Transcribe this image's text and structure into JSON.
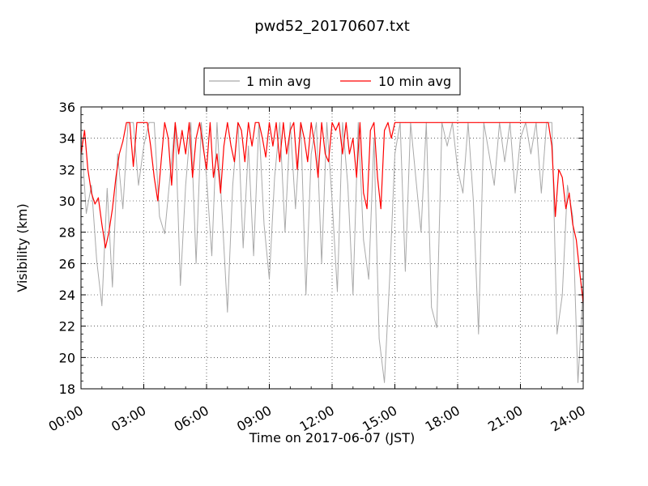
{
  "chart_data": {
    "type": "line",
    "title": "pwd52_20170607.txt",
    "xlabel": "Time on 2017-06-07 (JST)",
    "ylabel": "Visibility (km)",
    "xlim": [
      "00:00",
      "24:00"
    ],
    "ylim": [
      18,
      36
    ],
    "x_ticks": [
      "00:00",
      "03:00",
      "06:00",
      "09:00",
      "12:00",
      "15:00",
      "18:00",
      "21:00",
      "24:00"
    ],
    "y_ticks": [
      18,
      20,
      22,
      24,
      26,
      28,
      30,
      32,
      34,
      36
    ],
    "grid": true,
    "legend_position": "top-center",
    "legend": [
      "1 min avg",
      "10 min avg"
    ],
    "series": [
      {
        "name": "1 min avg",
        "color": "#a9a9a9",
        "x_hours": [
          0,
          0.25,
          0.5,
          0.75,
          1.0,
          1.25,
          1.5,
          1.75,
          2.0,
          2.25,
          2.5,
          2.75,
          3.0,
          3.25,
          3.5,
          3.75,
          4.0,
          4.25,
          4.5,
          4.75,
          5.0,
          5.25,
          5.5,
          5.75,
          6.0,
          6.25,
          6.5,
          6.75,
          7.0,
          7.25,
          7.5,
          7.75,
          8.0,
          8.25,
          8.5,
          8.75,
          9.0,
          9.25,
          9.5,
          9.75,
          10.0,
          10.25,
          10.5,
          10.75,
          11.0,
          11.25,
          11.5,
          11.75,
          12.0,
          12.25,
          12.5,
          12.75,
          13.0,
          13.25,
          13.5,
          13.75,
          14.0,
          14.25,
          14.5,
          14.75,
          15.0,
          15.25,
          15.5,
          15.75,
          16.0,
          16.25,
          16.5,
          16.75,
          17.0,
          17.25,
          17.5,
          17.75,
          18.0,
          18.25,
          18.5,
          18.75,
          19.0,
          19.25,
          19.5,
          19.75,
          20.0,
          20.25,
          20.5,
          20.75,
          21.0,
          21.25,
          21.5,
          21.75,
          22.0,
          22.25,
          22.5,
          22.75,
          23.0,
          23.25,
          23.5,
          23.75,
          24.0
        ],
        "values": [
          34.5,
          29.2,
          31.0,
          26.2,
          23.3,
          30.8,
          24.5,
          33.0,
          29.5,
          35.0,
          35.0,
          31.0,
          33.5,
          35.0,
          35.0,
          29.0,
          27.9,
          31.5,
          35.0,
          24.6,
          31.0,
          35.0,
          26.0,
          35.0,
          31.5,
          26.5,
          35.0,
          29.0,
          22.9,
          31.0,
          35.0,
          27.0,
          33.5,
          26.5,
          35.0,
          28.5,
          25.0,
          31.5,
          35.0,
          28.0,
          35.0,
          29.5,
          35.0,
          24.0,
          33.0,
          35.0,
          26.0,
          35.0,
          30.0,
          24.2,
          35.0,
          31.0,
          24.0,
          35.0,
          27.5,
          25.0,
          34.0,
          21.2,
          18.4,
          25.0,
          33.0,
          35.0,
          25.5,
          35.0,
          31.5,
          28.0,
          35.0,
          23.2,
          21.9,
          35.0,
          33.5,
          35.0,
          32.0,
          30.5,
          35.0,
          30.0,
          21.5,
          35.0,
          33.0,
          31.0,
          35.0,
          32.5,
          35.0,
          30.5,
          34.0,
          35.0,
          33.0,
          35.0,
          30.5,
          35.0,
          35.0,
          21.5,
          24.0,
          31.0,
          29.0,
          18.4,
          24.5
        ]
      },
      {
        "name": "10 min avg",
        "color": "#ff0000",
        "x_hours": [
          0,
          0.17,
          0.33,
          0.5,
          0.67,
          0.83,
          1.0,
          1.17,
          1.33,
          1.5,
          1.67,
          1.83,
          2.0,
          2.17,
          2.33,
          2.5,
          2.67,
          2.83,
          3.0,
          3.17,
          3.33,
          3.5,
          3.67,
          3.83,
          4.0,
          4.17,
          4.33,
          4.5,
          4.67,
          4.83,
          5.0,
          5.17,
          5.33,
          5.5,
          5.67,
          5.83,
          6.0,
          6.17,
          6.33,
          6.5,
          6.67,
          6.83,
          7.0,
          7.17,
          7.33,
          7.5,
          7.67,
          7.83,
          8.0,
          8.17,
          8.33,
          8.5,
          8.67,
          8.83,
          9.0,
          9.17,
          9.33,
          9.5,
          9.67,
          9.83,
          10.0,
          10.17,
          10.33,
          10.5,
          10.67,
          10.83,
          11.0,
          11.17,
          11.33,
          11.5,
          11.67,
          11.83,
          12.0,
          12.17,
          12.33,
          12.5,
          12.67,
          12.83,
          13.0,
          13.17,
          13.33,
          13.5,
          13.67,
          13.83,
          14.0,
          14.17,
          14.33,
          14.5,
          14.67,
          14.83,
          15.0,
          15.5,
          16.0,
          17.0,
          18.0,
          19.0,
          20.0,
          21.0,
          22.0,
          22.33,
          22.5,
          22.67,
          22.83,
          23.0,
          23.17,
          23.33,
          23.5,
          23.67,
          23.83,
          24.0
        ],
        "values": [
          33.0,
          34.5,
          32.0,
          30.5,
          29.8,
          30.2,
          28.5,
          27.0,
          28.0,
          29.5,
          31.5,
          33.0,
          33.8,
          35.0,
          35.0,
          32.2,
          35.0,
          35.0,
          35.0,
          35.0,
          33.5,
          31.5,
          30.0,
          32.5,
          35.0,
          34.0,
          31.0,
          35.0,
          33.0,
          34.5,
          33.0,
          35.0,
          31.5,
          34.0,
          35.0,
          33.5,
          32.0,
          35.0,
          31.5,
          33.0,
          30.5,
          33.5,
          35.0,
          33.5,
          32.5,
          35.0,
          34.5,
          32.5,
          35.0,
          33.5,
          35.0,
          35.0,
          34.0,
          32.8,
          35.0,
          33.5,
          35.0,
          32.5,
          35.0,
          33.0,
          34.5,
          35.0,
          32.0,
          35.0,
          34.0,
          32.5,
          35.0,
          33.5,
          31.5,
          35.0,
          33.0,
          32.5,
          35.0,
          34.5,
          35.0,
          33.0,
          35.0,
          33.0,
          34.0,
          31.5,
          35.0,
          30.5,
          29.5,
          34.5,
          35.0,
          31.5,
          29.5,
          34.5,
          35.0,
          34.0,
          35.0,
          35.0,
          35.0,
          35.0,
          35.0,
          35.0,
          35.0,
          35.0,
          35.0,
          35.0,
          33.5,
          29.0,
          32.0,
          31.5,
          29.5,
          30.5,
          28.5,
          27.5,
          25.5,
          23.5
        ]
      }
    ]
  }
}
